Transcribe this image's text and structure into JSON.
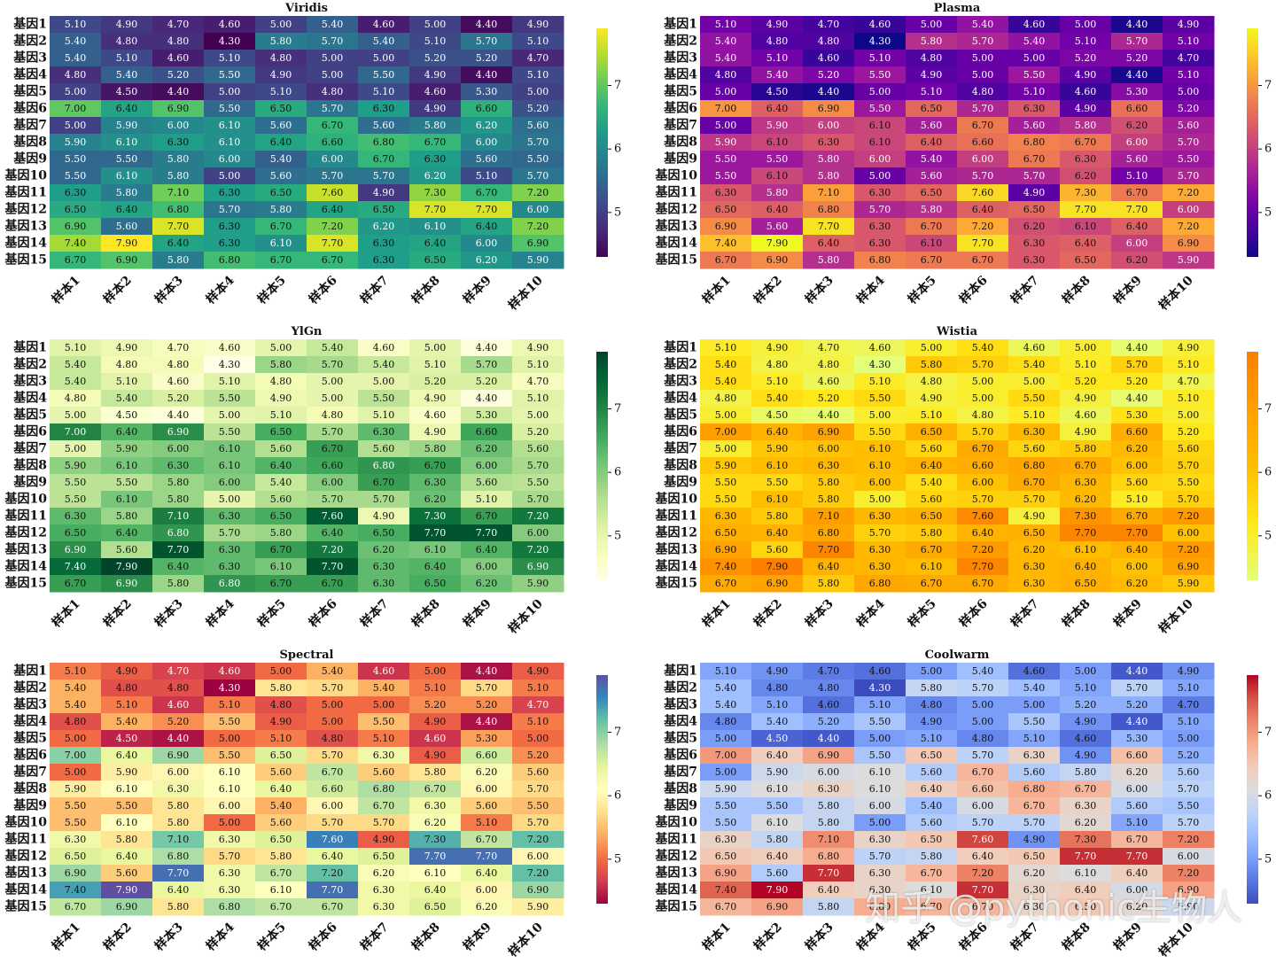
{
  "chart_data": [
    {
      "type": "heatmap",
      "title": "Viridis",
      "colormap": "viridis",
      "rows": [
        "基因1",
        "基因2",
        "基因3",
        "基因4",
        "基因5",
        "基因6",
        "基因7",
        "基因8",
        "基因9",
        "基因10",
        "基因11",
        "基因12",
        "基因13",
        "基因14",
        "基因15"
      ],
      "columns": [
        "样本1",
        "样本2",
        "样本3",
        "样本4",
        "样本5",
        "样本6",
        "样本7",
        "样本8",
        "样本9",
        "样本10"
      ],
      "values": [
        [
          5.1,
          4.9,
          4.7,
          4.6,
          5.0,
          5.4,
          4.6,
          5.0,
          4.4,
          4.9
        ],
        [
          5.4,
          4.8,
          4.8,
          4.3,
          5.8,
          5.7,
          5.4,
          5.1,
          5.7,
          5.1
        ],
        [
          5.4,
          5.1,
          4.6,
          5.1,
          4.8,
          5.0,
          5.0,
          5.2,
          5.2,
          4.7
        ],
        [
          4.8,
          5.4,
          5.2,
          5.5,
          4.9,
          5.0,
          5.5,
          4.9,
          4.4,
          5.1
        ],
        [
          5.0,
          4.5,
          4.4,
          5.0,
          5.1,
          4.8,
          5.1,
          4.6,
          5.3,
          5.0
        ],
        [
          7.0,
          6.4,
          6.9,
          5.5,
          6.5,
          5.7,
          6.3,
          4.9,
          6.6,
          5.2
        ],
        [
          5.0,
          5.9,
          6.0,
          6.1,
          5.6,
          6.7,
          5.6,
          5.8,
          6.2,
          5.6
        ],
        [
          5.9,
          6.1,
          6.3,
          6.1,
          6.4,
          6.6,
          6.8,
          6.7,
          6.0,
          5.7
        ],
        [
          5.5,
          5.5,
          5.8,
          6.0,
          5.4,
          6.0,
          6.7,
          6.3,
          5.6,
          5.5
        ],
        [
          5.5,
          6.1,
          5.8,
          5.0,
          5.6,
          5.7,
          5.7,
          6.2,
          5.1,
          5.7
        ],
        [
          6.3,
          5.8,
          7.1,
          6.3,
          6.5,
          7.6,
          4.9,
          7.3,
          6.7,
          7.2
        ],
        [
          6.5,
          6.4,
          6.8,
          5.7,
          5.8,
          6.4,
          6.5,
          7.7,
          7.7,
          6.0
        ],
        [
          6.9,
          5.6,
          7.7,
          6.3,
          6.7,
          7.2,
          6.2,
          6.1,
          6.4,
          7.2
        ],
        [
          7.4,
          7.9,
          6.4,
          6.3,
          6.1,
          7.7,
          6.3,
          6.4,
          6.0,
          6.9
        ],
        [
          6.7,
          6.9,
          5.8,
          6.8,
          6.7,
          6.7,
          6.3,
          6.5,
          6.2,
          5.9
        ]
      ],
      "vmin": 4.3,
      "vmax": 7.9,
      "colorbar_ticks": [
        "5",
        "6",
        "7"
      ],
      "value_format": "0.00"
    },
    {
      "type": "heatmap",
      "title": "Plasma",
      "colormap": "plasma",
      "rows": [
        "基因1",
        "基因2",
        "基因3",
        "基因4",
        "基因5",
        "基因6",
        "基因7",
        "基因8",
        "基因9",
        "基因10",
        "基因11",
        "基因12",
        "基因13",
        "基因14",
        "基因15"
      ],
      "columns": [
        "样本1",
        "样本2",
        "样本3",
        "样本4",
        "样本5",
        "样本6",
        "样本7",
        "样本8",
        "样本9",
        "样本10"
      ],
      "values": [
        [
          5.1,
          4.9,
          4.7,
          4.6,
          5.0,
          5.4,
          4.6,
          5.0,
          4.4,
          4.9
        ],
        [
          5.4,
          4.8,
          4.8,
          4.3,
          5.8,
          5.7,
          5.4,
          5.1,
          5.7,
          5.1
        ],
        [
          5.4,
          5.1,
          4.6,
          5.1,
          4.8,
          5.0,
          5.0,
          5.2,
          5.2,
          4.7
        ],
        [
          4.8,
          5.4,
          5.2,
          5.5,
          4.9,
          5.0,
          5.5,
          4.9,
          4.4,
          5.1
        ],
        [
          5.0,
          4.5,
          4.4,
          5.0,
          5.1,
          4.8,
          5.1,
          4.6,
          5.3,
          5.0
        ],
        [
          7.0,
          6.4,
          6.9,
          5.5,
          6.5,
          5.7,
          6.3,
          4.9,
          6.6,
          5.2
        ],
        [
          5.0,
          5.9,
          6.0,
          6.1,
          5.6,
          6.7,
          5.6,
          5.8,
          6.2,
          5.6
        ],
        [
          5.9,
          6.1,
          6.3,
          6.1,
          6.4,
          6.6,
          6.8,
          6.7,
          6.0,
          5.7
        ],
        [
          5.5,
          5.5,
          5.8,
          6.0,
          5.4,
          6.0,
          6.7,
          6.3,
          5.6,
          5.5
        ],
        [
          5.5,
          6.1,
          5.8,
          5.0,
          5.6,
          5.7,
          5.7,
          6.2,
          5.1,
          5.7
        ],
        [
          6.3,
          5.8,
          7.1,
          6.3,
          6.5,
          7.6,
          4.9,
          7.3,
          6.7,
          7.2
        ],
        [
          6.5,
          6.4,
          6.8,
          5.7,
          5.8,
          6.4,
          6.5,
          7.7,
          7.7,
          6.0
        ],
        [
          6.9,
          5.6,
          7.7,
          6.3,
          6.7,
          7.2,
          6.2,
          6.1,
          6.4,
          7.2
        ],
        [
          7.4,
          7.9,
          6.4,
          6.3,
          6.1,
          7.7,
          6.3,
          6.4,
          6.0,
          6.9
        ],
        [
          6.7,
          6.9,
          5.8,
          6.8,
          6.7,
          6.7,
          6.3,
          6.5,
          6.2,
          5.9
        ]
      ],
      "vmin": 4.3,
      "vmax": 7.9,
      "colorbar_ticks": [
        "5",
        "6",
        "7"
      ],
      "value_format": "0.00"
    },
    {
      "type": "heatmap",
      "title": "YlGn",
      "colormap": "ylgn",
      "rows": [
        "基因1",
        "基因2",
        "基因3",
        "基因4",
        "基因5",
        "基因6",
        "基因7",
        "基因8",
        "基因9",
        "基因10",
        "基因11",
        "基因12",
        "基因13",
        "基因14",
        "基因15"
      ],
      "columns": [
        "样本1",
        "样本2",
        "样本3",
        "样本4",
        "样本5",
        "样本6",
        "样本7",
        "样本8",
        "样本9",
        "样本10"
      ],
      "values": [
        [
          5.1,
          4.9,
          4.7,
          4.6,
          5.0,
          5.4,
          4.6,
          5.0,
          4.4,
          4.9
        ],
        [
          5.4,
          4.8,
          4.8,
          4.3,
          5.8,
          5.7,
          5.4,
          5.1,
          5.7,
          5.1
        ],
        [
          5.4,
          5.1,
          4.6,
          5.1,
          4.8,
          5.0,
          5.0,
          5.2,
          5.2,
          4.7
        ],
        [
          4.8,
          5.4,
          5.2,
          5.5,
          4.9,
          5.0,
          5.5,
          4.9,
          4.4,
          5.1
        ],
        [
          5.0,
          4.5,
          4.4,
          5.0,
          5.1,
          4.8,
          5.1,
          4.6,
          5.3,
          5.0
        ],
        [
          7.0,
          6.4,
          6.9,
          5.5,
          6.5,
          5.7,
          6.3,
          4.9,
          6.6,
          5.2
        ],
        [
          5.0,
          5.9,
          6.0,
          6.1,
          5.6,
          6.7,
          5.6,
          5.8,
          6.2,
          5.6
        ],
        [
          5.9,
          6.1,
          6.3,
          6.1,
          6.4,
          6.6,
          6.8,
          6.7,
          6.0,
          5.7
        ],
        [
          5.5,
          5.5,
          5.8,
          6.0,
          5.4,
          6.0,
          6.7,
          6.3,
          5.6,
          5.5
        ],
        [
          5.5,
          6.1,
          5.8,
          5.0,
          5.6,
          5.7,
          5.7,
          6.2,
          5.1,
          5.7
        ],
        [
          6.3,
          5.8,
          7.1,
          6.3,
          6.5,
          7.6,
          4.9,
          7.3,
          6.7,
          7.2
        ],
        [
          6.5,
          6.4,
          6.8,
          5.7,
          5.8,
          6.4,
          6.5,
          7.7,
          7.7,
          6.0
        ],
        [
          6.9,
          5.6,
          7.7,
          6.3,
          6.7,
          7.2,
          6.2,
          6.1,
          6.4,
          7.2
        ],
        [
          7.4,
          7.9,
          6.4,
          6.3,
          6.1,
          7.7,
          6.3,
          6.4,
          6.0,
          6.9
        ],
        [
          6.7,
          6.9,
          5.8,
          6.8,
          6.7,
          6.7,
          6.3,
          6.5,
          6.2,
          5.9
        ]
      ],
      "vmin": 4.3,
      "vmax": 7.9,
      "colorbar_ticks": [
        "5",
        "6",
        "7"
      ],
      "value_format": "0.00"
    },
    {
      "type": "heatmap",
      "title": "Wistia",
      "colormap": "wistia",
      "rows": [
        "基因1",
        "基因2",
        "基因3",
        "基因4",
        "基因5",
        "基因6",
        "基因7",
        "基因8",
        "基因9",
        "基因10",
        "基因11",
        "基因12",
        "基因13",
        "基因14",
        "基因15"
      ],
      "columns": [
        "样本1",
        "样本2",
        "样本3",
        "样本4",
        "样本5",
        "样本6",
        "样本7",
        "样本8",
        "样本9",
        "样本10"
      ],
      "values": [
        [
          5.1,
          4.9,
          4.7,
          4.6,
          5.0,
          5.4,
          4.6,
          5.0,
          4.4,
          4.9
        ],
        [
          5.4,
          4.8,
          4.8,
          4.3,
          5.8,
          5.7,
          5.4,
          5.1,
          5.7,
          5.1
        ],
        [
          5.4,
          5.1,
          4.6,
          5.1,
          4.8,
          5.0,
          5.0,
          5.2,
          5.2,
          4.7
        ],
        [
          4.8,
          5.4,
          5.2,
          5.5,
          4.9,
          5.0,
          5.5,
          4.9,
          4.4,
          5.1
        ],
        [
          5.0,
          4.5,
          4.4,
          5.0,
          5.1,
          4.8,
          5.1,
          4.6,
          5.3,
          5.0
        ],
        [
          7.0,
          6.4,
          6.9,
          5.5,
          6.5,
          5.7,
          6.3,
          4.9,
          6.6,
          5.2
        ],
        [
          5.0,
          5.9,
          6.0,
          6.1,
          5.6,
          6.7,
          5.6,
          5.8,
          6.2,
          5.6
        ],
        [
          5.9,
          6.1,
          6.3,
          6.1,
          6.4,
          6.6,
          6.8,
          6.7,
          6.0,
          5.7
        ],
        [
          5.5,
          5.5,
          5.8,
          6.0,
          5.4,
          6.0,
          6.7,
          6.3,
          5.6,
          5.5
        ],
        [
          5.5,
          6.1,
          5.8,
          5.0,
          5.6,
          5.7,
          5.7,
          6.2,
          5.1,
          5.7
        ],
        [
          6.3,
          5.8,
          7.1,
          6.3,
          6.5,
          7.6,
          4.9,
          7.3,
          6.7,
          7.2
        ],
        [
          6.5,
          6.4,
          6.8,
          5.7,
          5.8,
          6.4,
          6.5,
          7.7,
          7.7,
          6.0
        ],
        [
          6.9,
          5.6,
          7.7,
          6.3,
          6.7,
          7.2,
          6.2,
          6.1,
          6.4,
          7.2
        ],
        [
          7.4,
          7.9,
          6.4,
          6.3,
          6.1,
          7.7,
          6.3,
          6.4,
          6.0,
          6.9
        ],
        [
          6.7,
          6.9,
          5.8,
          6.8,
          6.7,
          6.7,
          6.3,
          6.5,
          6.2,
          5.9
        ]
      ],
      "vmin": 4.3,
      "vmax": 7.9,
      "colorbar_ticks": [
        "5",
        "6",
        "7"
      ],
      "value_format": "0.00"
    },
    {
      "type": "heatmap",
      "title": "Spectral",
      "colormap": "spectral",
      "rows": [
        "基因1",
        "基因2",
        "基因3",
        "基因4",
        "基因5",
        "基因6",
        "基因7",
        "基因8",
        "基因9",
        "基因10",
        "基因11",
        "基因12",
        "基因13",
        "基因14",
        "基因15"
      ],
      "columns": [
        "样本1",
        "样本2",
        "样本3",
        "样本4",
        "样本5",
        "样本6",
        "样本7",
        "样本8",
        "样本9",
        "样本10"
      ],
      "values": [
        [
          5.1,
          4.9,
          4.7,
          4.6,
          5.0,
          5.4,
          4.6,
          5.0,
          4.4,
          4.9
        ],
        [
          5.4,
          4.8,
          4.8,
          4.3,
          5.8,
          5.7,
          5.4,
          5.1,
          5.7,
          5.1
        ],
        [
          5.4,
          5.1,
          4.6,
          5.1,
          4.8,
          5.0,
          5.0,
          5.2,
          5.2,
          4.7
        ],
        [
          4.8,
          5.4,
          5.2,
          5.5,
          4.9,
          5.0,
          5.5,
          4.9,
          4.4,
          5.1
        ],
        [
          5.0,
          4.5,
          4.4,
          5.0,
          5.1,
          4.8,
          5.1,
          4.6,
          5.3,
          5.0
        ],
        [
          7.0,
          6.4,
          6.9,
          5.5,
          6.5,
          5.7,
          6.3,
          4.9,
          6.6,
          5.2
        ],
        [
          5.0,
          5.9,
          6.0,
          6.1,
          5.6,
          6.7,
          5.6,
          5.8,
          6.2,
          5.6
        ],
        [
          5.9,
          6.1,
          6.3,
          6.1,
          6.4,
          6.6,
          6.8,
          6.7,
          6.0,
          5.7
        ],
        [
          5.5,
          5.5,
          5.8,
          6.0,
          5.4,
          6.0,
          6.7,
          6.3,
          5.6,
          5.5
        ],
        [
          5.5,
          6.1,
          5.8,
          5.0,
          5.6,
          5.7,
          5.7,
          6.2,
          5.1,
          5.7
        ],
        [
          6.3,
          5.8,
          7.1,
          6.3,
          6.5,
          7.6,
          4.9,
          7.3,
          6.7,
          7.2
        ],
        [
          6.5,
          6.4,
          6.8,
          5.7,
          5.8,
          6.4,
          6.5,
          7.7,
          7.7,
          6.0
        ],
        [
          6.9,
          5.6,
          7.7,
          6.3,
          6.7,
          7.2,
          6.2,
          6.1,
          6.4,
          7.2
        ],
        [
          7.4,
          7.9,
          6.4,
          6.3,
          6.1,
          7.7,
          6.3,
          6.4,
          6.0,
          6.9
        ],
        [
          6.7,
          6.9,
          5.8,
          6.8,
          6.7,
          6.7,
          6.3,
          6.5,
          6.2,
          5.9
        ]
      ],
      "vmin": 4.3,
      "vmax": 7.9,
      "colorbar_ticks": [
        "5",
        "6",
        "7"
      ],
      "value_format": "0.00"
    },
    {
      "type": "heatmap",
      "title": "Coolwarm",
      "colormap": "coolwarm",
      "rows": [
        "基因1",
        "基因2",
        "基因3",
        "基因4",
        "基因5",
        "基因6",
        "基因7",
        "基因8",
        "基因9",
        "基因10",
        "基因11",
        "基因12",
        "基因13",
        "基因14",
        "基因15"
      ],
      "columns": [
        "样本1",
        "样本2",
        "样本3",
        "样本4",
        "样本5",
        "样本6",
        "样本7",
        "样本8",
        "样本9",
        "样本10"
      ],
      "values": [
        [
          5.1,
          4.9,
          4.7,
          4.6,
          5.0,
          5.4,
          4.6,
          5.0,
          4.4,
          4.9
        ],
        [
          5.4,
          4.8,
          4.8,
          4.3,
          5.8,
          5.7,
          5.4,
          5.1,
          5.7,
          5.1
        ],
        [
          5.4,
          5.1,
          4.6,
          5.1,
          4.8,
          5.0,
          5.0,
          5.2,
          5.2,
          4.7
        ],
        [
          4.8,
          5.4,
          5.2,
          5.5,
          4.9,
          5.0,
          5.5,
          4.9,
          4.4,
          5.1
        ],
        [
          5.0,
          4.5,
          4.4,
          5.0,
          5.1,
          4.8,
          5.1,
          4.6,
          5.3,
          5.0
        ],
        [
          7.0,
          6.4,
          6.9,
          5.5,
          6.5,
          5.7,
          6.3,
          4.9,
          6.6,
          5.2
        ],
        [
          5.0,
          5.9,
          6.0,
          6.1,
          5.6,
          6.7,
          5.6,
          5.8,
          6.2,
          5.6
        ],
        [
          5.9,
          6.1,
          6.3,
          6.1,
          6.4,
          6.6,
          6.8,
          6.7,
          6.0,
          5.7
        ],
        [
          5.5,
          5.5,
          5.8,
          6.0,
          5.4,
          6.0,
          6.7,
          6.3,
          5.6,
          5.5
        ],
        [
          5.5,
          6.1,
          5.8,
          5.0,
          5.6,
          5.7,
          5.7,
          6.2,
          5.1,
          5.7
        ],
        [
          6.3,
          5.8,
          7.1,
          6.3,
          6.5,
          7.6,
          4.9,
          7.3,
          6.7,
          7.2
        ],
        [
          6.5,
          6.4,
          6.8,
          5.7,
          5.8,
          6.4,
          6.5,
          7.7,
          7.7,
          6.0
        ],
        [
          6.9,
          5.6,
          7.7,
          6.3,
          6.7,
          7.2,
          6.2,
          6.1,
          6.4,
          7.2
        ],
        [
          7.4,
          7.9,
          6.4,
          6.3,
          6.1,
          7.7,
          6.3,
          6.4,
          6.0,
          6.9
        ],
        [
          6.7,
          6.9,
          5.8,
          6.8,
          6.7,
          6.7,
          6.3,
          6.5,
          6.2,
          5.9
        ]
      ],
      "vmin": 4.3,
      "vmax": 7.9,
      "colorbar_ticks": [
        "5",
        "6",
        "7"
      ],
      "value_format": "0.00"
    }
  ],
  "watermark": "知乎 @pythonic生物人"
}
